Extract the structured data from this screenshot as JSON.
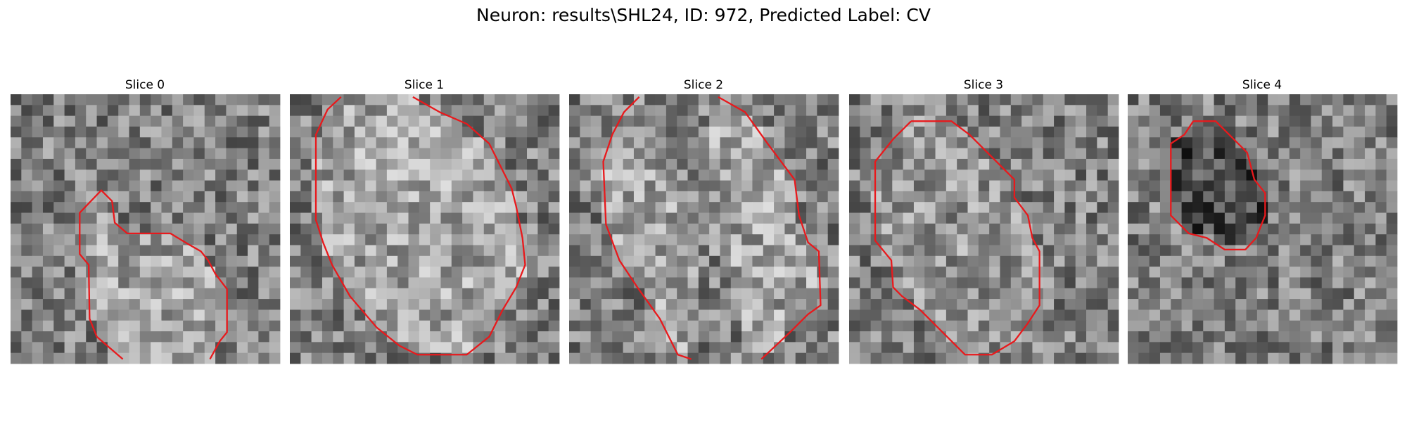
{
  "title": "Neuron: results\\SHL24, ID: 972, Predicted Label: CV",
  "panels": [
    {
      "title": "Slice 0"
    },
    {
      "title": "Slice 1"
    },
    {
      "title": "Slice 2"
    },
    {
      "title": "Slice 3"
    },
    {
      "title": "Slice 4"
    }
  ]
}
